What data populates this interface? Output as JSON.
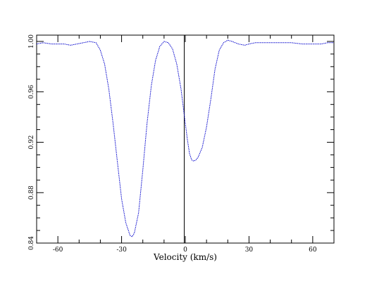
{
  "chart_data": {
    "type": "line",
    "title": "",
    "xlabel": "Velocity (km/s)",
    "ylabel": "",
    "xlim": [
      -70,
      70
    ],
    "ylim": [
      0.84,
      1.005
    ],
    "x_ticks": [
      -60,
      -30,
      0,
      30,
      60
    ],
    "x_tick_labels": [
      "-60",
      "-30",
      "0",
      "30",
      "60"
    ],
    "y_ticks": [
      0.84,
      0.88,
      0.92,
      0.96,
      1.0
    ],
    "y_tick_labels": [
      "0.84",
      "0.88",
      "0.92",
      "0.96",
      "1.00"
    ],
    "grid": false,
    "reference_line_x": -0.5,
    "series": [
      {
        "color": "#0000cc",
        "x": [
          -70,
          -67,
          -63,
          -60,
          -57,
          -54,
          -51,
          -48,
          -45,
          -42,
          -40,
          -38,
          -36,
          -34,
          -32,
          -30,
          -28,
          -26,
          -25,
          -24,
          -22,
          -20,
          -18,
          -16,
          -14,
          -12,
          -10,
          -8,
          -6,
          -4,
          -2,
          0,
          1,
          2,
          3,
          4,
          5,
          6,
          8,
          10,
          12,
          14,
          16,
          18,
          20,
          22,
          25,
          28,
          30,
          33,
          36,
          40,
          45,
          50,
          55,
          58,
          61,
          64,
          67,
          70
        ],
        "y": [
          0.998,
          0.999,
          0.998,
          0.998,
          0.998,
          0.997,
          0.998,
          0.999,
          1.0,
          0.999,
          0.993,
          0.982,
          0.962,
          0.935,
          0.905,
          0.875,
          0.856,
          0.846,
          0.845,
          0.848,
          0.864,
          0.898,
          0.935,
          0.965,
          0.985,
          0.996,
          1.0,
          0.999,
          0.994,
          0.982,
          0.962,
          0.935,
          0.922,
          0.911,
          0.906,
          0.905,
          0.906,
          0.908,
          0.916,
          0.932,
          0.954,
          0.978,
          0.993,
          0.999,
          1.001,
          1.0,
          0.998,
          0.997,
          0.998,
          0.999,
          0.999,
          0.999,
          0.999,
          0.999,
          0.998,
          0.998,
          0.998,
          0.998,
          0.999,
          0.999
        ]
      }
    ]
  }
}
